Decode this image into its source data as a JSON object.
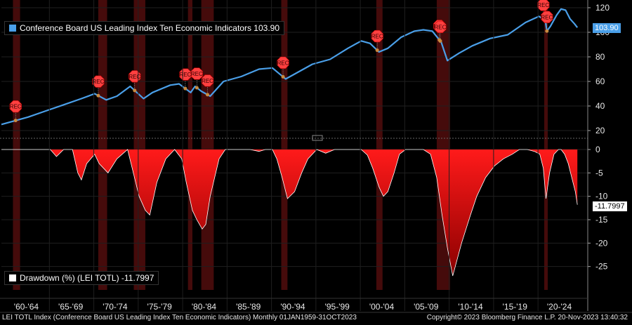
{
  "chart_data": [
    {
      "type": "line",
      "series": [
        {
          "name": "Conference Board US Leading Index Ten Economic Indicators",
          "last_value_label": "103.90",
          "color": "#4a9fe8",
          "x": [
            1959,
            1960,
            1962,
            1964,
            1966,
            1968,
            1969.5,
            1970.8,
            1972,
            1973.5,
            1975,
            1976,
            1978,
            1979,
            1980.3,
            1980.8,
            1981.5,
            1982.5,
            1984,
            1986,
            1988,
            1989.5,
            1990.5,
            1991,
            1992,
            1994,
            1996,
            1998,
            1999.5,
            2000.5,
            2001.5,
            2002.5,
            2004,
            2005.5,
            2006.5,
            2007.5,
            2008.5,
            2009.2,
            2010.5,
            2012,
            2014,
            2016,
            2018,
            2019.5,
            2020.2,
            2020.4,
            2020.8,
            2021.5,
            2022,
            2022.5,
            2023.0,
            2023.5,
            2023.83
          ],
          "values": [
            25,
            27,
            31,
            36,
            41,
            46,
            50,
            45,
            48,
            56,
            46,
            51,
            57,
            58,
            51,
            56,
            52,
            48,
            60,
            64,
            70,
            71,
            65,
            62,
            66,
            74,
            78,
            87,
            93,
            91,
            84,
            87,
            96,
            101,
            102,
            101,
            92,
            77,
            83,
            89,
            95,
            98,
            108,
            113,
            110,
            101,
            105,
            114,
            119,
            118,
            111,
            107,
            103.9
          ]
        }
      ],
      "ylim": [
        20,
        120
      ],
      "yticks": [
        "20",
        "40",
        "60",
        "80",
        "100",
        "120"
      ],
      "recession_markers": [
        {
          "x": 1960.6,
          "label": "REC"
        },
        {
          "x": 1969.9,
          "label": "REC"
        },
        {
          "x": 1974.0,
          "label": "REC"
        },
        {
          "x": 1979.7,
          "label": "REC"
        },
        {
          "x": 1981.0,
          "label": "REC"
        },
        {
          "x": 1982.2,
          "label": "REC"
        },
        {
          "x": 1990.7,
          "label": "REC"
        },
        {
          "x": 2001.3,
          "label": "REC"
        },
        {
          "x": 2008.3,
          "label": "REC"
        },
        {
          "x": 2008.4,
          "label": "REC"
        },
        {
          "x": 2020.0,
          "label": "REC"
        },
        {
          "x": 2020.4,
          "label": "REC"
        }
      ]
    },
    {
      "type": "area",
      "series": [
        {
          "name": "Drawdown (%) (LEI TOTL)",
          "last_value_label": "-11.7997",
          "color": "#ff1a1a",
          "x": [
            1959,
            1963.5,
            1964.5,
            1965.2,
            1966,
            1967,
            1967.6,
            1968,
            1968.6,
            1969.5,
            1970,
            1971,
            1972,
            1973.2,
            1974.5,
            1975.2,
            1975.7,
            1976.5,
            1977.5,
            1978.5,
            1979.3,
            1979.8,
            1980.5,
            1981,
            1981.6,
            1982,
            1982.5,
            1983.5,
            1984.2,
            1985,
            1986,
            1987,
            1988,
            1988.7,
            1989.5,
            1990,
            1990.6,
            1991.2,
            1992,
            1992.8,
            1993.5,
            1994.5,
            1995.5,
            1996.5,
            1997.5,
            1998.5,
            1999.5,
            2000.2,
            2000.8,
            2001.5,
            2002,
            2002.5,
            2003.2,
            2003.8,
            2004.5,
            2005.5,
            2006.5,
            2007.3,
            2008,
            2008.6,
            2009.2,
            2009.8,
            2010.8,
            2011.8,
            2012.5,
            2013.5,
            2014.5,
            2015.5,
            2016.5,
            2017.3,
            2018.2,
            2019,
            2019.6,
            2020.0,
            2020.3,
            2020.7,
            2021.2,
            2021.7,
            2022.0,
            2022.4,
            2022.8,
            2023.2,
            2023.6,
            2023.83
          ],
          "values": [
            0,
            0,
            0,
            -1.5,
            0,
            0,
            -5,
            -6.5,
            -3,
            -1,
            -3,
            -5,
            -2,
            0,
            -10,
            -13,
            -14,
            -7,
            -2,
            0,
            -2,
            -7,
            -13,
            -15,
            -17,
            -16,
            -10,
            -2,
            0,
            0,
            0,
            0,
            -0.4,
            0,
            0,
            -2,
            -6,
            -10.5,
            -9,
            -5,
            -2,
            0,
            -0.8,
            0,
            0,
            0,
            0,
            -1.2,
            -4,
            -8,
            -10,
            -9,
            -5,
            -1,
            0,
            0,
            0,
            -1,
            -6,
            -14,
            -21,
            -27,
            -20,
            -14,
            -10,
            -6,
            -3.5,
            -2,
            -1,
            0,
            0,
            -0.4,
            -1,
            -4,
            -10.5,
            -5,
            -1,
            0,
            0,
            -1,
            -3,
            -6,
            -9,
            -11.8
          ]
        }
      ],
      "ylim": [
        -30,
        0
      ],
      "yticks": [
        "0",
        "-5",
        "-10",
        "-15",
        "-20",
        "-25"
      ]
    }
  ],
  "recession_bands": [
    [
      1960.3,
      1961.1
    ],
    [
      1969.9,
      1970.9
    ],
    [
      1973.9,
      1975.2
    ],
    [
      1980.0,
      1980.5
    ],
    [
      1981.5,
      1982.9
    ],
    [
      1990.5,
      1991.2
    ],
    [
      2001.2,
      2001.9
    ],
    [
      2008.0,
      2009.5
    ],
    [
      2020.1,
      2020.4
    ]
  ],
  "x_axis": {
    "xlim": [
      1959,
      2025
    ],
    "labels": [
      {
        "label": "'60-'64",
        "x": 1961.8
      },
      {
        "label": "'65-'69",
        "x": 1966.8
      },
      {
        "label": "'70-'74",
        "x": 1971.8
      },
      {
        "label": "'75-'79",
        "x": 1976.8
      },
      {
        "label": "'80-'84",
        "x": 1981.8
      },
      {
        "label": "'85-'89",
        "x": 1986.8
      },
      {
        "label": "'90-'94",
        "x": 1991.8
      },
      {
        "label": "'95-'99",
        "x": 1996.8
      },
      {
        "label": "'00-'04",
        "x": 2001.8
      },
      {
        "label": "'05-'09",
        "x": 2006.8
      },
      {
        "label": "'10-'14",
        "x": 2011.8
      },
      {
        "label": "'15-'19",
        "x": 2016.8
      },
      {
        "label": "'20-'24",
        "x": 2021.8
      }
    ],
    "separators": [
      1964.4,
      1969.4,
      1974.4,
      1979.4,
      1984.4,
      1989.4,
      1994.4,
      1999.4,
      2004.4,
      2009.4,
      2014.4,
      2019.4
    ]
  },
  "legend_top": "Conference Board US Leading Index Ten Economic Indicators  103.90",
  "legend_bottom": "Drawdown (%) (LEI TOTL) -11.7997",
  "footer_left": "LEI TOTL Index (Conference Board US Leading Index Ten Economic Indicators)  Monthly 01JAN1959-31OCT2023",
  "footer_right": "Copyright© 2023 Bloomberg Finance L.P.      20-Nov-2023 13:40:32",
  "tags": {
    "lei": "103.90",
    "drawdown": "-11.7997"
  },
  "colors": {
    "background": "#000000",
    "lei_line": "#4a9fe8",
    "drawdown_fill": "#ff1a1a",
    "recession_band": "#4d0c0c",
    "grid": "#1f1f1f",
    "marker": "#ff4040"
  }
}
